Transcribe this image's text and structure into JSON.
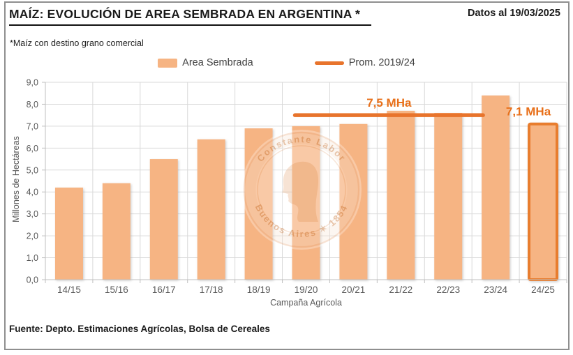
{
  "header": {
    "title": "MAÍZ: EVOLUCIÓN DE AREA SEMBRADA EN ARGENTINA *",
    "date_note": "Datos al 19/03/2025",
    "subtitle": "*Maíz con destino grano comercial"
  },
  "legend": {
    "items": [
      {
        "label": "Area Sembrada",
        "type": "bar"
      },
      {
        "label": "Prom. 2019/24",
        "type": "line"
      }
    ]
  },
  "chart_data": {
    "type": "bar",
    "categories": [
      "14/15",
      "15/16",
      "16/17",
      "17/18",
      "18/19",
      "19/20",
      "20/21",
      "21/22",
      "22/23",
      "23/24",
      "24/25"
    ],
    "values": [
      4.2,
      4.4,
      5.5,
      6.4,
      6.9,
      7.0,
      7.1,
      7.7,
      7.6,
      8.4,
      7.1
    ],
    "series_name": "Area Sembrada",
    "xlabel": "Campaña Agrícola",
    "ylabel": "Millones de Hectáreas",
    "ylim": [
      0,
      9
    ],
    "ytick_step": 1,
    "grid": true,
    "decimal_comma": true,
    "highlight_last": true,
    "avg_line": {
      "label_series": "Prom. 2019/24",
      "value": 7.5,
      "from_index": 5,
      "to_index": 9
    }
  },
  "annotations": {
    "avg_label": "7,5 MHa",
    "last_label": "7,1 MHa"
  },
  "watermark": {
    "line_top": "Constante Labor",
    "line_bottom": "Buenos Aires ✶ 1854"
  },
  "footer": {
    "source": "Fuente: Depto. Estimaciones Agrícolas, Bolsa de Cereales"
  },
  "colors": {
    "bar": "#F6B483",
    "bar_border_last": "#E87D2E",
    "line": "#E8742C",
    "annotation": "#E8701A",
    "grid": "#D9D9D9",
    "axis": "#BFBFBF",
    "axis_text": "#595959",
    "watermark": "#DD8A4E"
  }
}
